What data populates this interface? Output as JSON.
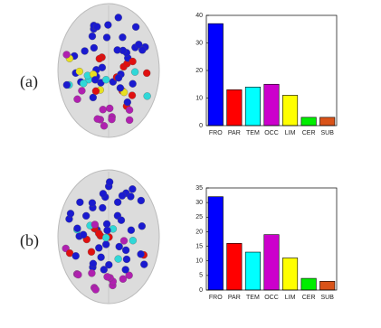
{
  "chart_data": [
    {
      "type": "bar",
      "panel_label": "(a)",
      "categories": [
        "FRO",
        "PAR",
        "TEM",
        "OCC",
        "LIM",
        "CER",
        "SUB"
      ],
      "values": [
        37,
        13,
        14,
        15,
        11,
        3,
        3
      ],
      "colors": [
        "#0000ff",
        "#ff0000",
        "#00ffff",
        "#cc00cc",
        "#ffff00",
        "#00ee00",
        "#d95319"
      ],
      "ylim": [
        0,
        40
      ],
      "yticks": [
        0,
        10,
        20,
        30,
        40
      ]
    },
    {
      "type": "bar",
      "panel_label": "(b)",
      "categories": [
        "FRO",
        "PAR",
        "TEM",
        "OCC",
        "LIM",
        "CER",
        "SUB"
      ],
      "values": [
        32,
        16,
        13,
        19,
        11,
        4,
        3
      ],
      "colors": [
        "#0000ff",
        "#ff0000",
        "#00ffff",
        "#cc00cc",
        "#ffff00",
        "#00ee00",
        "#d95319"
      ],
      "ylim": [
        0,
        35
      ],
      "yticks": [
        0,
        5,
        10,
        15,
        20,
        25,
        30,
        35
      ]
    }
  ]
}
